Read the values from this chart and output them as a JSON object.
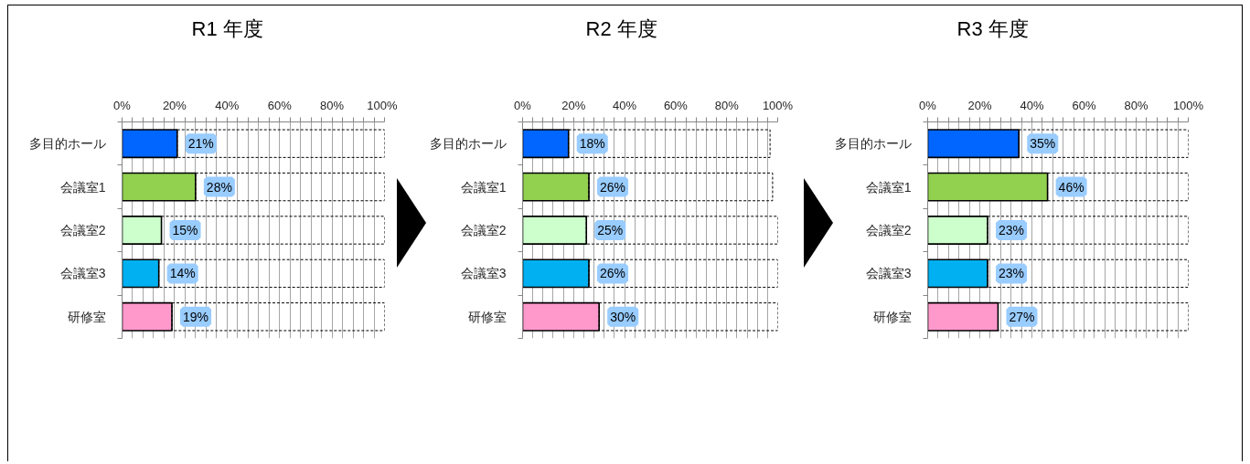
{
  "chart_data": [
    {
      "type": "bar",
      "orientation": "horizontal",
      "stacked": true,
      "title": "R1 年度",
      "categories": [
        "多目的ホール",
        "会議室1",
        "会議室2",
        "会議室3",
        "研修室"
      ],
      "series": [
        {
          "colors": [
            "#0066ff",
            "#92d050",
            "#ccffcc",
            "#00b0f0",
            "#ff99cc"
          ],
          "values": [
            21,
            28,
            15,
            14,
            19
          ],
          "value_labels": [
            "21%",
            "28%",
            "15%",
            "14%",
            "19%"
          ]
        },
        {
          "color": "#000000",
          "line_style": "dashed",
          "values": [
            79,
            72,
            85,
            86,
            81
          ]
        }
      ],
      "xlim": [
        0,
        100
      ],
      "xticks": [
        {
          "value": 0,
          "label": "0%"
        },
        {
          "value": 4,
          "label": null
        },
        {
          "value": 8,
          "label": null
        },
        {
          "value": 12,
          "label": null
        },
        {
          "value": 16,
          "label": null
        },
        {
          "value": 20,
          "label": "20%"
        },
        {
          "value": 24,
          "label": null
        },
        {
          "value": 28,
          "label": null
        },
        {
          "value": 32,
          "label": null
        },
        {
          "value": 36,
          "label": null
        },
        {
          "value": 40,
          "label": "40%"
        },
        {
          "value": 44,
          "label": null
        },
        {
          "value": 48,
          "label": null
        },
        {
          "value": 52,
          "label": null
        },
        {
          "value": 56,
          "label": null
        },
        {
          "value": 60,
          "label": "60%"
        },
        {
          "value": 64,
          "label": null
        },
        {
          "value": 68,
          "label": null
        },
        {
          "value": 72,
          "label": null
        },
        {
          "value": 76,
          "label": null
        },
        {
          "value": 80,
          "label": "80%"
        },
        {
          "value": 84,
          "label": null
        },
        {
          "value": 88,
          "label": null
        },
        {
          "value": 92,
          "label": null
        },
        {
          "value": 96,
          "label": null
        },
        {
          "value": 100,
          "label": "100%"
        }
      ],
      "grid": "x"
    },
    {
      "type": "bar",
      "orientation": "horizontal",
      "stacked": true,
      "title": "R2 年度",
      "categories": [
        "多目的ホール",
        "会議室1",
        "会議室2",
        "会議室3",
        "研修室"
      ],
      "series": [
        {
          "colors": [
            "#0066ff",
            "#92d050",
            "#ccffcc",
            "#00b0f0",
            "#ff99cc"
          ],
          "values": [
            18,
            26,
            25,
            26,
            30
          ],
          "value_labels": [
            "18%",
            "26%",
            "25%",
            "26%",
            "30%"
          ]
        },
        {
          "color": "#000000",
          "line_style": "dashed",
          "values": [
            79,
            72,
            75,
            74,
            70
          ]
        }
      ],
      "xlim": [
        0,
        100
      ],
      "xticks": [
        {
          "value": 0,
          "label": "0%"
        },
        {
          "value": 4,
          "label": null
        },
        {
          "value": 8,
          "label": null
        },
        {
          "value": 12,
          "label": null
        },
        {
          "value": 16,
          "label": null
        },
        {
          "value": 20,
          "label": "20%"
        },
        {
          "value": 24,
          "label": null
        },
        {
          "value": 28,
          "label": null
        },
        {
          "value": 32,
          "label": null
        },
        {
          "value": 36,
          "label": null
        },
        {
          "value": 40,
          "label": "40%"
        },
        {
          "value": 44,
          "label": null
        },
        {
          "value": 48,
          "label": null
        },
        {
          "value": 52,
          "label": null
        },
        {
          "value": 56,
          "label": null
        },
        {
          "value": 60,
          "label": "60%"
        },
        {
          "value": 64,
          "label": null
        },
        {
          "value": 68,
          "label": null
        },
        {
          "value": 72,
          "label": null
        },
        {
          "value": 76,
          "label": null
        },
        {
          "value": 80,
          "label": "80%"
        },
        {
          "value": 84,
          "label": null
        },
        {
          "value": 88,
          "label": null
        },
        {
          "value": 92,
          "label": null
        },
        {
          "value": 96,
          "label": null
        },
        {
          "value": 100,
          "label": "100%"
        }
      ],
      "grid": "x"
    },
    {
      "type": "bar",
      "orientation": "horizontal",
      "stacked": true,
      "title": "R3 年度",
      "categories": [
        "多目的ホール",
        "会議室1",
        "会議室2",
        "会議室3",
        "研修室"
      ],
      "series": [
        {
          "colors": [
            "#0066ff",
            "#92d050",
            "#ccffcc",
            "#00b0f0",
            "#ff99cc"
          ],
          "values": [
            35,
            46,
            23,
            23,
            27
          ],
          "value_labels": [
            "35%",
            "46%",
            "23%",
            "23%",
            "27%"
          ]
        },
        {
          "color": "#000000",
          "line_style": "dashed",
          "values": [
            65,
            54,
            77,
            77,
            73
          ]
        }
      ],
      "xlim": [
        0,
        100
      ],
      "xticks": [
        {
          "value": 0,
          "label": "0%"
        },
        {
          "value": 4,
          "label": null
        },
        {
          "value": 8,
          "label": null
        },
        {
          "value": 12,
          "label": null
        },
        {
          "value": 16,
          "label": null
        },
        {
          "value": 20,
          "label": "20%"
        },
        {
          "value": 24,
          "label": null
        },
        {
          "value": 28,
          "label": null
        },
        {
          "value": 32,
          "label": null
        },
        {
          "value": 36,
          "label": null
        },
        {
          "value": 40,
          "label": "40%"
        },
        {
          "value": 44,
          "label": null
        },
        {
          "value": 48,
          "label": null
        },
        {
          "value": 52,
          "label": null
        },
        {
          "value": 56,
          "label": null
        },
        {
          "value": 60,
          "label": "60%"
        },
        {
          "value": 64,
          "label": null
        },
        {
          "value": 68,
          "label": null
        },
        {
          "value": 72,
          "label": null
        },
        {
          "value": 76,
          "label": null
        },
        {
          "value": 80,
          "label": "80%"
        },
        {
          "value": 84,
          "label": null
        },
        {
          "value": 88,
          "label": null
        },
        {
          "value": 92,
          "label": null
        },
        {
          "value": 96,
          "label": null
        },
        {
          "value": 100,
          "label": "100%"
        }
      ],
      "grid": "x"
    }
  ]
}
